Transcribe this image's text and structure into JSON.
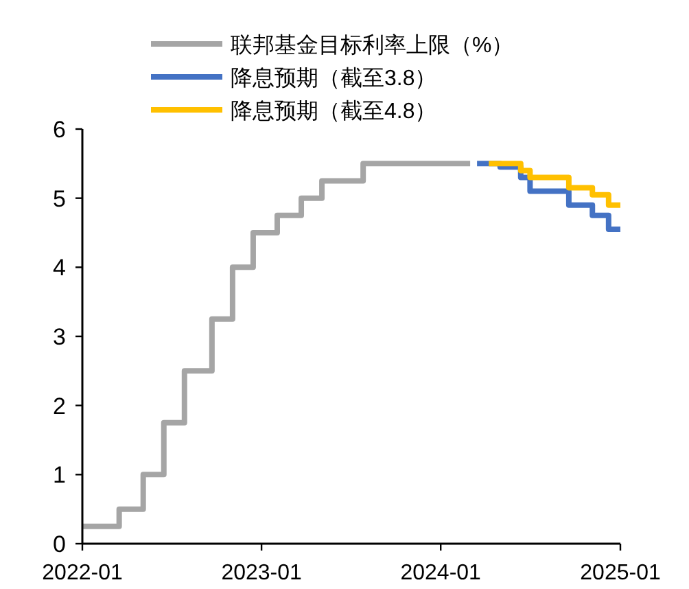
{
  "chart_data": {
    "type": "step",
    "series": [
      {
        "name": "联邦基金目标利率上限（%）",
        "color": "#a5a5a5",
        "x": [
          "2022-01-01",
          "2022-03-17",
          "2022-05-05",
          "2022-06-16",
          "2022-07-28",
          "2022-09-22",
          "2022-11-03",
          "2022-12-15",
          "2023-02-02",
          "2023-03-23",
          "2023-05-04",
          "2023-07-27",
          "2024-03-01"
        ],
        "values": [
          0.25,
          0.5,
          1.0,
          1.75,
          2.5,
          3.25,
          4.0,
          4.5,
          4.75,
          5.0,
          5.25,
          5.5,
          5.5
        ]
      },
      {
        "name": "降息预期（截至3.8）",
        "color": "#4472c4",
        "x": [
          "2024-03-15",
          "2024-05-01",
          "2024-06-12",
          "2024-07-01",
          "2024-09-18",
          "2024-11-05",
          "2024-12-08",
          "2025-01-01"
        ],
        "values": [
          5.5,
          5.45,
          5.3,
          5.1,
          4.9,
          4.75,
          4.55,
          4.55
        ]
      },
      {
        "name": "降息预期（截至4.8）",
        "color": "#ffc000",
        "x": [
          "2024-04-08",
          "2024-06-12",
          "2024-07-01",
          "2024-09-18",
          "2024-11-05",
          "2024-12-08",
          "2025-01-01"
        ],
        "values": [
          5.5,
          5.4,
          5.3,
          5.15,
          5.05,
          4.9,
          4.9
        ]
      }
    ],
    "xlim": [
      "2022-01",
      "2025-01"
    ],
    "xticks": [
      {
        "value": "2022-01",
        "label": "2022-01"
      },
      {
        "value": "2023-01",
        "label": "2023-01"
      },
      {
        "value": "2024-01",
        "label": "2024-01"
      },
      {
        "value": "2025-01",
        "label": "2025-01"
      }
    ],
    "ylim": [
      0,
      6
    ],
    "yticks": [
      0,
      1,
      2,
      3,
      4,
      5,
      6
    ],
    "legend": "top"
  }
}
